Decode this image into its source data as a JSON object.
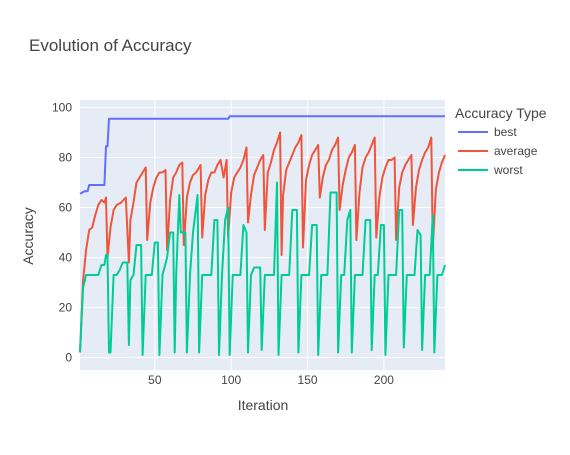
{
  "chart_data": {
    "type": "line",
    "title": "Evolution of Accuracy",
    "xlabel": "Iteration",
    "ylabel": "Accuracy",
    "xlim": [
      1,
      240
    ],
    "ylim": [
      -5,
      103
    ],
    "x_ticks": [
      50,
      100,
      150,
      200
    ],
    "y_ticks": [
      0,
      20,
      40,
      60,
      80,
      100
    ],
    "grid": true,
    "legend": {
      "title": "Accuracy Type",
      "placement": "right"
    },
    "plot_bgcolor": "#E5ECF6",
    "series": [
      {
        "name": "best",
        "color": "#636EFA",
        "points": [
          [
            1,
            65.5
          ],
          [
            4,
            66.5
          ],
          [
            6,
            66.5
          ],
          [
            7,
            69
          ],
          [
            17,
            69
          ],
          [
            18,
            84.5
          ],
          [
            19,
            84.5
          ],
          [
            20,
            95.5
          ],
          [
            98,
            95.5
          ],
          [
            99,
            96.5
          ],
          [
            240,
            96.5
          ]
        ]
      },
      {
        "name": "average",
        "color": "#EF553B",
        "points": [
          [
            1,
            2
          ],
          [
            3,
            31
          ],
          [
            5,
            43
          ],
          [
            7,
            51
          ],
          [
            9,
            52
          ],
          [
            11,
            57
          ],
          [
            13,
            61
          ],
          [
            15,
            63
          ],
          [
            17,
            62
          ],
          [
            18,
            64
          ],
          [
            19,
            40
          ],
          [
            21,
            52
          ],
          [
            23,
            59
          ],
          [
            25,
            61
          ],
          [
            28,
            62
          ],
          [
            31,
            64
          ],
          [
            33,
            38
          ],
          [
            34,
            55
          ],
          [
            36,
            62
          ],
          [
            38,
            70
          ],
          [
            40,
            72
          ],
          [
            42,
            74
          ],
          [
            44,
            76
          ],
          [
            45,
            47
          ],
          [
            47,
            62
          ],
          [
            49,
            68
          ],
          [
            51,
            72
          ],
          [
            53,
            74
          ],
          [
            55,
            74
          ],
          [
            57,
            75
          ],
          [
            58,
            43
          ],
          [
            60,
            63
          ],
          [
            62,
            72
          ],
          [
            64,
            74
          ],
          [
            66,
            77
          ],
          [
            68,
            78
          ],
          [
            69,
            45
          ],
          [
            71,
            64
          ],
          [
            73,
            70
          ],
          [
            75,
            73
          ],
          [
            77,
            74
          ],
          [
            80,
            77
          ],
          [
            81,
            48
          ],
          [
            83,
            65
          ],
          [
            85,
            71
          ],
          [
            87,
            74
          ],
          [
            89,
            74
          ],
          [
            91,
            77
          ],
          [
            93,
            79
          ],
          [
            95,
            72
          ],
          [
            97,
            79
          ],
          [
            98,
            48
          ],
          [
            100,
            66
          ],
          [
            102,
            72
          ],
          [
            104,
            74
          ],
          [
            106,
            76
          ],
          [
            108,
            79
          ],
          [
            110,
            84
          ],
          [
            111,
            54
          ],
          [
            113,
            65
          ],
          [
            115,
            73
          ],
          [
            117,
            76
          ],
          [
            119,
            79
          ],
          [
            121,
            81
          ],
          [
            122,
            51
          ],
          [
            124,
            74
          ],
          [
            126,
            78
          ],
          [
            128,
            83
          ],
          [
            130,
            86
          ],
          [
            132,
            90
          ],
          [
            133,
            41
          ],
          [
            134,
            65
          ],
          [
            136,
            75
          ],
          [
            138,
            78
          ],
          [
            140,
            81
          ],
          [
            142,
            84
          ],
          [
            144,
            86
          ],
          [
            146,
            89
          ],
          [
            147,
            44
          ],
          [
            149,
            71
          ],
          [
            151,
            77
          ],
          [
            153,
            81
          ],
          [
            155,
            83
          ],
          [
            157,
            85
          ],
          [
            158,
            64
          ],
          [
            160,
            72
          ],
          [
            162,
            77
          ],
          [
            164,
            79
          ],
          [
            166,
            83
          ],
          [
            168,
            85
          ],
          [
            170,
            88
          ],
          [
            171,
            59
          ],
          [
            173,
            69
          ],
          [
            175,
            75
          ],
          [
            177,
            80
          ],
          [
            179,
            82
          ],
          [
            181,
            85
          ],
          [
            182,
            47
          ],
          [
            184,
            66
          ],
          [
            186,
            76
          ],
          [
            188,
            80
          ],
          [
            190,
            82
          ],
          [
            192,
            85
          ],
          [
            194,
            88
          ],
          [
            195,
            48
          ],
          [
            197,
            64
          ],
          [
            199,
            72
          ],
          [
            201,
            76
          ],
          [
            203,
            79
          ],
          [
            205,
            79
          ],
          [
            207,
            80
          ],
          [
            208,
            47
          ],
          [
            210,
            68
          ],
          [
            212,
            74
          ],
          [
            214,
            77
          ],
          [
            216,
            79
          ],
          [
            218,
            81
          ],
          [
            219,
            53
          ],
          [
            221,
            68
          ],
          [
            223,
            75
          ],
          [
            225,
            79
          ],
          [
            227,
            82
          ],
          [
            229,
            84
          ],
          [
            231,
            88
          ],
          [
            232,
            44
          ],
          [
            234,
            67
          ],
          [
            236,
            74
          ],
          [
            238,
            78
          ],
          [
            240,
            81
          ]
        ]
      },
      {
        "name": "worst",
        "color": "#00CC96",
        "points": [
          [
            1,
            2
          ],
          [
            3,
            28
          ],
          [
            5,
            33
          ],
          [
            9,
            33
          ],
          [
            13,
            33
          ],
          [
            15,
            37
          ],
          [
            17,
            37
          ],
          [
            18,
            41
          ],
          [
            19,
            41
          ],
          [
            20,
            2
          ],
          [
            21,
            2
          ],
          [
            23,
            33
          ],
          [
            25,
            33
          ],
          [
            27,
            35
          ],
          [
            29,
            38
          ],
          [
            32,
            38
          ],
          [
            33,
            5
          ],
          [
            34,
            31
          ],
          [
            36,
            33
          ],
          [
            38,
            45
          ],
          [
            41,
            45
          ],
          [
            42,
            1
          ],
          [
            44,
            33
          ],
          [
            48,
            33
          ],
          [
            50,
            46
          ],
          [
            52,
            46
          ],
          [
            53,
            1
          ],
          [
            55,
            33
          ],
          [
            58,
            40
          ],
          [
            60,
            50
          ],
          [
            62,
            50
          ],
          [
            63,
            2
          ],
          [
            64,
            33
          ],
          [
            66,
            65
          ],
          [
            67,
            50
          ],
          [
            70,
            50
          ],
          [
            71,
            2
          ],
          [
            73,
            33
          ],
          [
            75,
            50
          ],
          [
            78,
            65
          ],
          [
            79,
            2
          ],
          [
            81,
            33
          ],
          [
            87,
            33
          ],
          [
            89,
            55
          ],
          [
            91,
            55
          ],
          [
            92,
            1
          ],
          [
            94,
            33
          ],
          [
            96,
            55
          ],
          [
            98,
            60
          ],
          [
            99,
            1
          ],
          [
            101,
            33
          ],
          [
            106,
            33
          ],
          [
            108,
            53
          ],
          [
            110,
            50
          ],
          [
            111,
            2
          ],
          [
            113,
            33
          ],
          [
            115,
            36
          ],
          [
            119,
            36
          ],
          [
            120,
            3
          ],
          [
            122,
            33
          ],
          [
            128,
            33
          ],
          [
            130,
            70
          ],
          [
            131,
            1
          ],
          [
            133,
            33
          ],
          [
            138,
            33
          ],
          [
            140,
            59
          ],
          [
            143,
            59
          ],
          [
            144,
            2
          ],
          [
            146,
            33
          ],
          [
            151,
            33
          ],
          [
            153,
            53
          ],
          [
            156,
            53
          ],
          [
            157,
            1
          ],
          [
            159,
            33
          ],
          [
            163,
            33
          ],
          [
            165,
            66
          ],
          [
            169,
            66
          ],
          [
            170,
            2
          ],
          [
            172,
            33
          ],
          [
            174,
            33
          ],
          [
            176,
            55
          ],
          [
            178,
            59
          ],
          [
            179,
            2
          ],
          [
            181,
            33
          ],
          [
            186,
            33
          ],
          [
            188,
            55
          ],
          [
            191,
            55
          ],
          [
            192,
            3
          ],
          [
            194,
            33
          ],
          [
            196,
            33
          ],
          [
            198,
            53
          ],
          [
            200,
            53
          ],
          [
            201,
            1
          ],
          [
            203,
            33
          ],
          [
            208,
            33
          ],
          [
            210,
            59
          ],
          [
            212,
            59
          ],
          [
            213,
            4
          ],
          [
            215,
            33
          ],
          [
            220,
            33
          ],
          [
            222,
            51
          ],
          [
            224,
            49
          ],
          [
            225,
            3
          ],
          [
            227,
            33
          ],
          [
            230,
            33
          ],
          [
            232,
            57
          ],
          [
            233,
            2
          ],
          [
            235,
            33
          ],
          [
            238,
            33
          ],
          [
            240,
            37
          ]
        ]
      }
    ]
  }
}
